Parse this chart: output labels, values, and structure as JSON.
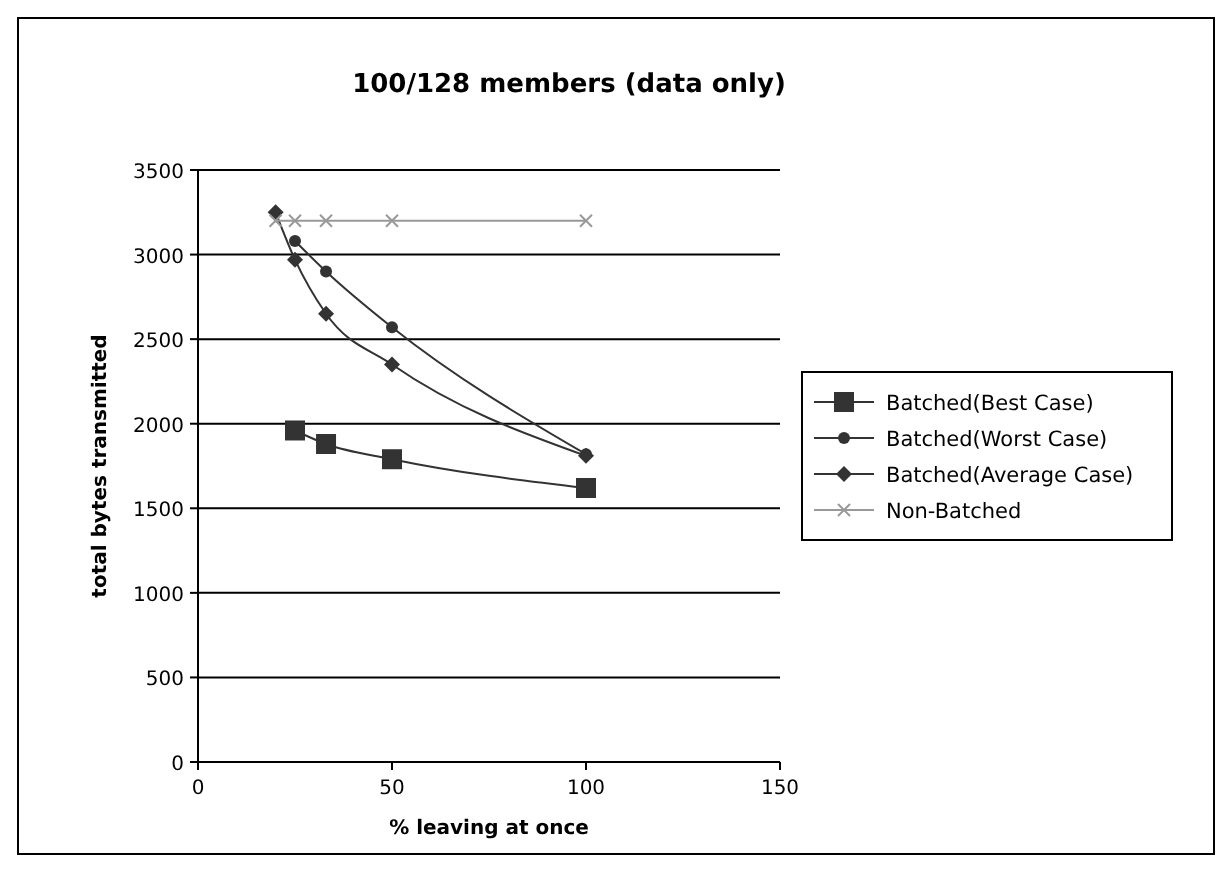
{
  "chart_data": {
    "type": "line",
    "title": "100/128 members (data only)",
    "xlabel": "% leaving at once",
    "ylabel": "total bytes transmitted",
    "xlim": [
      0,
      150
    ],
    "xticks": [
      0,
      50,
      100,
      150
    ],
    "ylim": [
      0,
      3500
    ],
    "yticks": [
      0,
      500,
      1000,
      1500,
      2000,
      2500,
      3000,
      3500
    ],
    "grid": "y",
    "legend": "right",
    "series": [
      {
        "name": "Batched(Best Case)",
        "color": "#333333",
        "marker": "square",
        "x": [
          25,
          33,
          50,
          100
        ],
        "values": [
          1960,
          1880,
          1790,
          1620
        ]
      },
      {
        "name": "Batched(Worst Case)",
        "color": "#333333",
        "marker": "circle",
        "x": [
          25,
          33,
          50,
          100
        ],
        "values": [
          3080,
          2900,
          2570,
          1820
        ]
      },
      {
        "name": "Batched(Average Case)",
        "color": "#333333",
        "marker": "diamond",
        "x": [
          20,
          25,
          33,
          50,
          100
        ],
        "values": [
          3250,
          2970,
          2650,
          2350,
          1810
        ]
      },
      {
        "name": "Non-Batched",
        "color": "#999999",
        "marker": "cross",
        "x": [
          20,
          25,
          33,
          50,
          100
        ],
        "values": [
          3200,
          3200,
          3200,
          3200,
          3200
        ]
      }
    ]
  }
}
